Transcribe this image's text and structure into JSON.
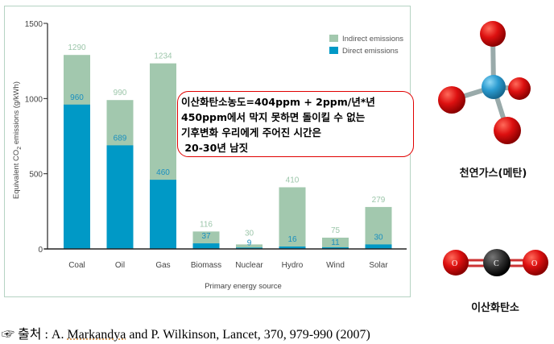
{
  "chart_data": {
    "type": "bar",
    "stacked": true,
    "categories": [
      "Coal",
      "Oil",
      "Gas",
      "Biomass",
      "Nuclear",
      "Hydro",
      "Wind",
      "Solar"
    ],
    "series": [
      {
        "name": "Direct emissions",
        "color": "#0099c6",
        "values": [
          960,
          689,
          460,
          37,
          9,
          16,
          11,
          30
        ]
      },
      {
        "name": "Indirect emissions",
        "color": "#a2c8ae",
        "totals": [
          1290,
          990,
          1234,
          116,
          30,
          410,
          75,
          279
        ]
      }
    ],
    "ylabel_parts": [
      "Equivalent CO",
      "2",
      " emissions (g/kWh)"
    ],
    "xlabel": "Primary energy source",
    "ylim": [
      0,
      1500
    ],
    "yticks": [
      0,
      500,
      1000,
      1500
    ],
    "legend_placement": "top-right",
    "grid": false
  },
  "note": {
    "lines": [
      "이산화탄소농도=404ppm + 2ppm/년*년",
      "450ppm에서 막지 못하면 돌이킬 수 없는",
      "기후변화 우리에게 주어진 시간은",
      " 20-30년 남짓"
    ],
    "border_color": "#e00000"
  },
  "molecules": {
    "methane_label": "천연가스(메탄)",
    "co2_label": "이산화탄소",
    "co2_atoms": [
      "O",
      "C",
      "O"
    ]
  },
  "source": {
    "icon": "pointing-hand-icon",
    "prefix": "☞ 출처 : A. ",
    "author": "Markandya",
    "rest": " and P. Wilkinson, Lancet, 370, 979-990 (2007)"
  }
}
